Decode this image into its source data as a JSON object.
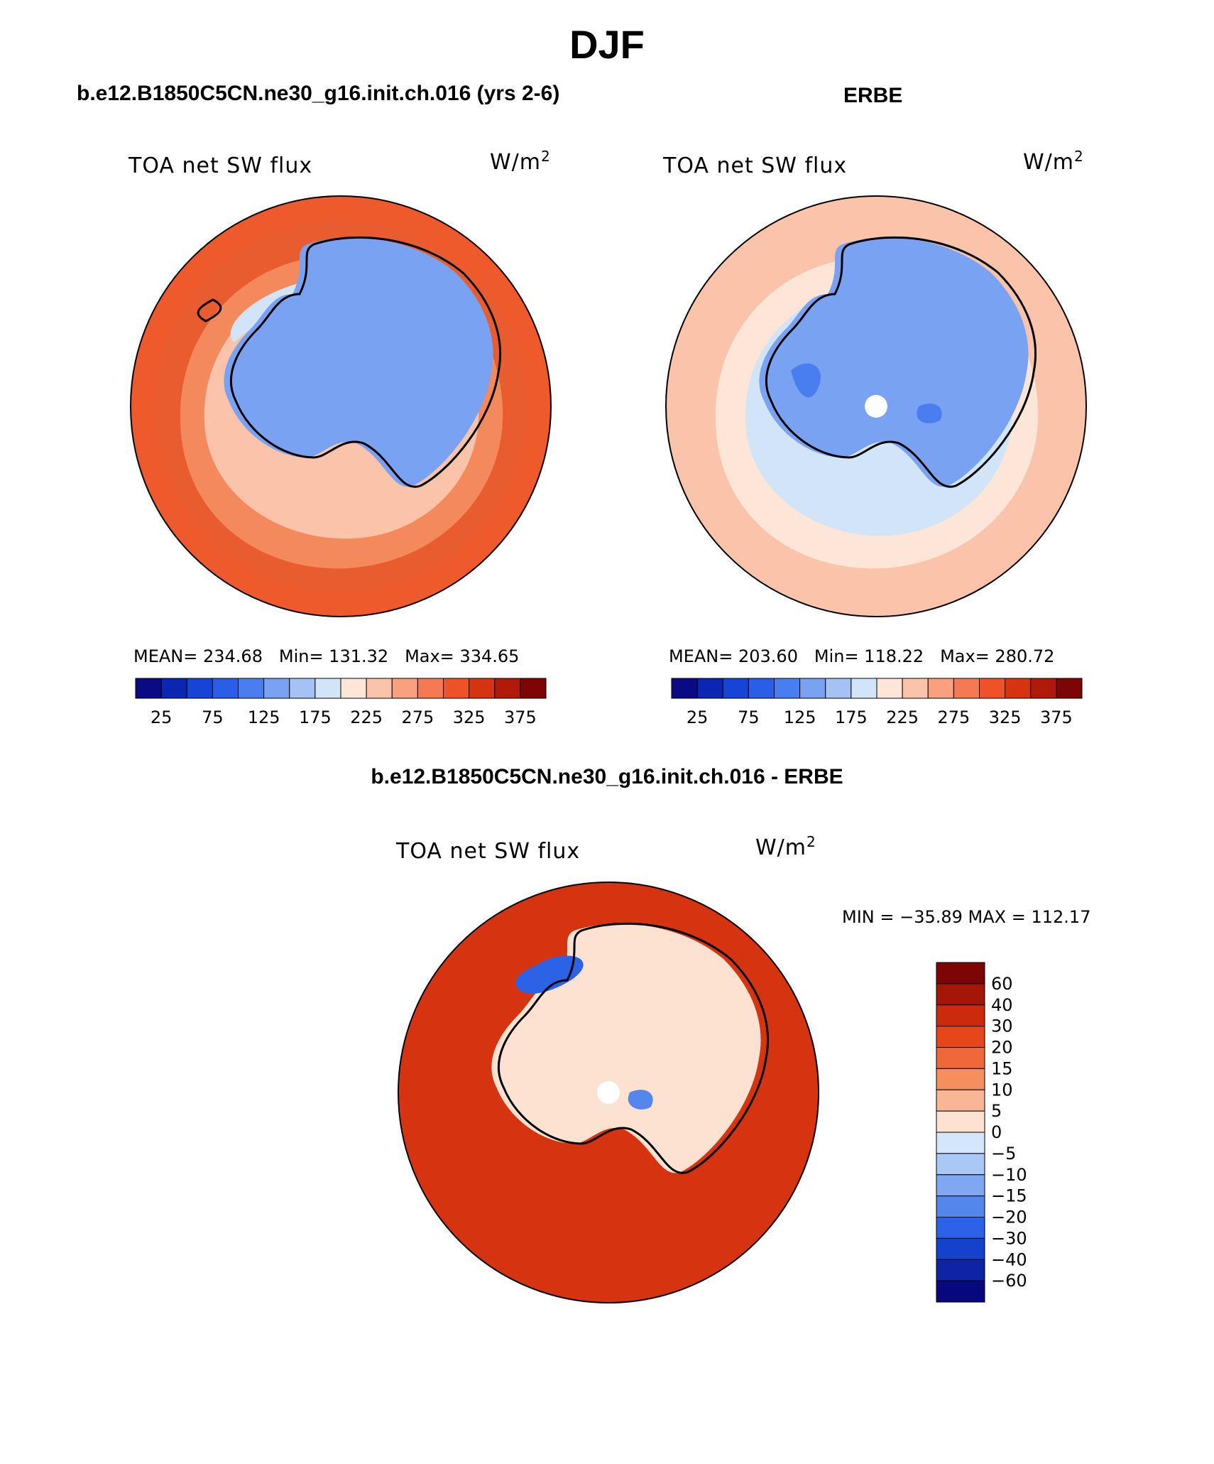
{
  "figure": {
    "title": "DJF"
  },
  "panels": [
    {
      "title": "b.e12.B1850C5CN.ne30_g16.init.ch.016 (yrs 2-6)",
      "variable_label": "TOA net SW flux",
      "units_base": "W/m",
      "units_exp": "2",
      "stats": {
        "mean": "MEAN= 234.68",
        "min": "Min= 131.32",
        "max": "Max= 334.65"
      }
    },
    {
      "title": "ERBE",
      "variable_label": "TOA net SW flux",
      "units_base": "W/m",
      "units_exp": "2",
      "stats": {
        "mean": "MEAN= 203.60",
        "min": "Min= 118.22",
        "max": "Max= 280.72"
      }
    },
    {
      "title": "b.e12.B1850C5CN.ne30_g16.init.ch.016 - ERBE",
      "variable_label": "TOA net SW flux",
      "units_base": "W/m",
      "units_exp": "2",
      "stats": {
        "minmax": "MIN = −35.89 MAX = 112.17"
      }
    }
  ],
  "colorbars": {
    "absolute": {
      "tick_labels": [
        "25",
        "75",
        "125",
        "175",
        "225",
        "275",
        "325",
        "375"
      ],
      "colors": [
        "#0a0a84",
        "#0c26b4",
        "#1644d6",
        "#2a5ee8",
        "#4a7ef0",
        "#7aa2f2",
        "#a6c2f4",
        "#d2e4f8",
        "#fde6d8",
        "#fbc4aa",
        "#f8a080",
        "#f57a52",
        "#ef5228",
        "#d63410",
        "#b01a0a",
        "#7c0606"
      ]
    },
    "difference": {
      "tick_labels": [
        "60",
        "40",
        "30",
        "20",
        "15",
        "10",
        "5",
        "0",
        "−5",
        "−10",
        "−15",
        "−20",
        "−30",
        "−40",
        "−60"
      ],
      "colors": [
        "#7c0606",
        "#a41608",
        "#cc2a0c",
        "#e6461a",
        "#f06838",
        "#f5905e",
        "#f9b696",
        "#fde2d2",
        "#d4e6fa",
        "#aac8f6",
        "#80a8f2",
        "#5486ec",
        "#2c62e6",
        "#1442cc",
        "#0c24a6",
        "#08087e"
      ]
    }
  },
  "map_colors": {
    "ocean_model": "#e85c30",
    "ocean_model_outer": "#ee5a2c",
    "ring_model_1": "#f48a5c",
    "ring_model_2": "#fbc4aa",
    "ring_model_3": "#d2e4f8",
    "antarctica_model": "#7aa2f2",
    "ocean_obs": "#fbc4aa",
    "ring_obs_1": "#fde6d8",
    "antarctica_obs": "#7aa2f2",
    "antarctica_obs_dark": "#4a7ef0",
    "ocean_diff": "#d63410",
    "antarctica_diff": "#fde2d2",
    "pole_hole": "#ffffff"
  }
}
